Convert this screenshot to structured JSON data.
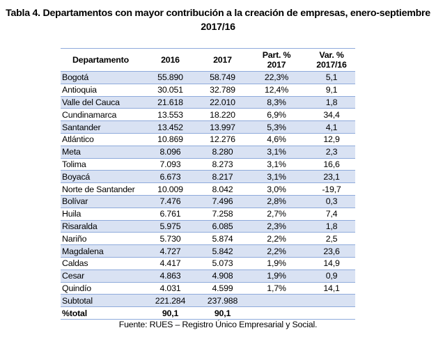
{
  "title": {
    "line1": "Tabla 4. Departamentos con mayor contribución a la creación de empresas, enero-septiembre",
    "line2": "2017/16"
  },
  "table": {
    "headers": {
      "departamento": "Departamento",
      "y2016": "2016",
      "y2017": "2017",
      "part_line1": "Part. %",
      "part_line2": "2017",
      "var_line1": "Var. %",
      "var_line2": "2017/16"
    },
    "rows": [
      {
        "dept": "Bogotá",
        "v2016": "55.890",
        "v2017": "58.749",
        "part": "22,3%",
        "var": "5,1"
      },
      {
        "dept": "Antioquia",
        "v2016": "30.051",
        "v2017": "32.789",
        "part": "12,4%",
        "var": "9,1"
      },
      {
        "dept": "Valle del Cauca",
        "v2016": "21.618",
        "v2017": "22.010",
        "part": "8,3%",
        "var": "1,8"
      },
      {
        "dept": "Cundinamarca",
        "v2016": "13.553",
        "v2017": "18.220",
        "part": "6,9%",
        "var": "34,4"
      },
      {
        "dept": "Santander",
        "v2016": "13.452",
        "v2017": "13.997",
        "part": "5,3%",
        "var": "4,1"
      },
      {
        "dept": "Atlántico",
        "v2016": "10.869",
        "v2017": "12.276",
        "part": "4,6%",
        "var": "12,9"
      },
      {
        "dept": "Meta",
        "v2016": "8.096",
        "v2017": "8.280",
        "part": "3,1%",
        "var": "2,3"
      },
      {
        "dept": "Tolima",
        "v2016": "7.093",
        "v2017": "8.273",
        "part": "3,1%",
        "var": "16,6"
      },
      {
        "dept": "Boyacá",
        "v2016": "6.673",
        "v2017": "8.217",
        "part": "3,1%",
        "var": "23,1"
      },
      {
        "dept": "Norte de Santander",
        "v2016": "10.009",
        "v2017": "8.042",
        "part": "3,0%",
        "var": "-19,7"
      },
      {
        "dept": "Bolívar",
        "v2016": "7.476",
        "v2017": "7.496",
        "part": "2,8%",
        "var": "0,3"
      },
      {
        "dept": "Huila",
        "v2016": "6.761",
        "v2017": "7.258",
        "part": "2,7%",
        "var": "7,4"
      },
      {
        "dept": "Risaralda",
        "v2016": "5.975",
        "v2017": "6.085",
        "part": "2,3%",
        "var": "1,8"
      },
      {
        "dept": "Nariño",
        "v2016": "5.730",
        "v2017": "5.874",
        "part": "2,2%",
        "var": "2,5"
      },
      {
        "dept": "Magdalena",
        "v2016": "4.727",
        "v2017": "5.842",
        "part": "2,2%",
        "var": "23,6"
      },
      {
        "dept": "Caldas",
        "v2016": "4.417",
        "v2017": "5.073",
        "part": "1,9%",
        "var": "14,9"
      },
      {
        "dept": "Cesar",
        "v2016": "4.863",
        "v2017": "4.908",
        "part": "1,9%",
        "var": "0,9"
      },
      {
        "dept": "Quindío",
        "v2016": "4.031",
        "v2017": "4.599",
        "part": "1,7%",
        "var": "14,1"
      }
    ],
    "subtotal": {
      "label": "Subtotal",
      "v2016": "221.284",
      "v2017": "237.988",
      "part": "",
      "var": ""
    },
    "total": {
      "label": "%total",
      "v2016": "90,1",
      "v2017": "90,1",
      "part": "",
      "var": ""
    }
  },
  "source": "Fuente: RUES – Registro Único Empresarial y Social.",
  "colors": {
    "band": "#d9e2f3",
    "rule": "#8eaadb"
  }
}
